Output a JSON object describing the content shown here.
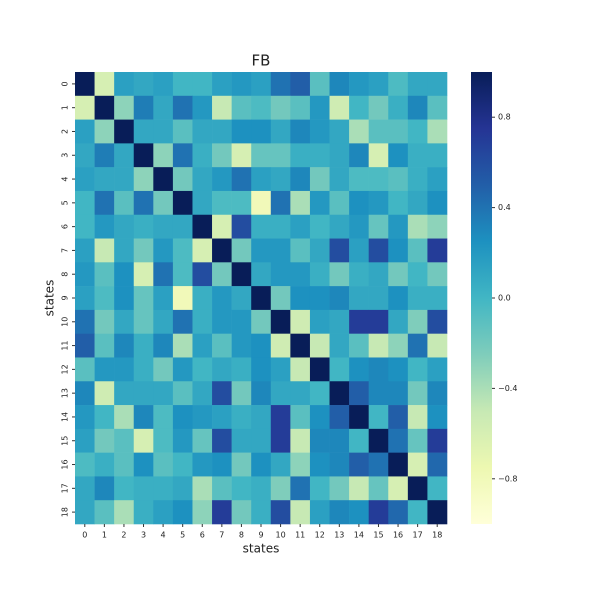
{
  "chart_data": {
    "type": "heatmap",
    "title": "FB",
    "xlabel": "states",
    "ylabel": "states",
    "x": [
      "0",
      "1",
      "2",
      "3",
      "4",
      "5",
      "6",
      "7",
      "8",
      "9",
      "10",
      "11",
      "12",
      "13",
      "14",
      "15",
      "16",
      "17",
      "18"
    ],
    "y": [
      "0",
      "1",
      "2",
      "3",
      "4",
      "5",
      "6",
      "7",
      "8",
      "9",
      "10",
      "11",
      "12",
      "13",
      "14",
      "15",
      "16",
      "17",
      "18"
    ],
    "values": [
      [
        1,
        -0.6,
        0.15,
        0.1,
        0.15,
        0,
        0,
        0.15,
        0.2,
        0.15,
        0.4,
        0.5,
        -0.1,
        0.3,
        0.2,
        0.15,
        -0.05,
        0.1,
        0.1
      ],
      [
        -0.6,
        1,
        -0.3,
        0.35,
        0.1,
        0.4,
        0.2,
        -0.5,
        -0.1,
        -0.05,
        -0.2,
        -0.1,
        0.2,
        -0.55,
        0,
        -0.2,
        0.05,
        0.3,
        -0.1
      ],
      [
        0.15,
        -0.3,
        1,
        0.1,
        0.1,
        -0.1,
        0.1,
        0.1,
        0.25,
        0.25,
        0.1,
        0.3,
        0.2,
        0.1,
        -0.4,
        -0.1,
        -0.1,
        0,
        -0.4
      ],
      [
        0.1,
        0.35,
        0.1,
        1,
        -0.3,
        0.4,
        0.05,
        -0.2,
        -0.6,
        -0.15,
        -0.15,
        0.05,
        0.05,
        0.1,
        0.3,
        -0.6,
        0.25,
        0.05,
        0.05
      ],
      [
        0.15,
        0.1,
        0.1,
        -0.3,
        1,
        -0.2,
        0.1,
        0.2,
        0.4,
        0.15,
        0.1,
        0.3,
        -0.2,
        0.1,
        -0.05,
        -0.05,
        -0.1,
        0.05,
        0.15
      ],
      [
        0,
        0.4,
        -0.1,
        0.4,
        -0.2,
        1,
        0.1,
        -0.05,
        -0.05,
        -0.8,
        0.4,
        -0.4,
        0.2,
        -0.1,
        0.25,
        0.2,
        0,
        0.1,
        0.25
      ],
      [
        0,
        0.2,
        0.1,
        0.05,
        0.1,
        0.1,
        1,
        -0.6,
        0.6,
        0.05,
        0.05,
        0.15,
        0,
        0.1,
        0.2,
        -0.15,
        0.2,
        -0.4,
        -0.3
      ],
      [
        0.15,
        -0.5,
        0.1,
        -0.2,
        0.2,
        -0.05,
        -0.6,
        1,
        -0.2,
        0.2,
        0.2,
        -0.1,
        0.1,
        0.6,
        0.15,
        0.6,
        0.25,
        -0.1,
        0.7
      ],
      [
        0.2,
        -0.1,
        0.25,
        -0.6,
        0.4,
        -0.05,
        0.6,
        -0.2,
        1,
        0.1,
        0.2,
        0.2,
        0.05,
        -0.2,
        0.05,
        0.1,
        -0.2,
        0,
        -0.2
      ],
      [
        0.15,
        -0.05,
        0.25,
        -0.15,
        0.15,
        -0.8,
        0.05,
        0.2,
        0.1,
        1,
        -0.2,
        0.25,
        0.25,
        0.3,
        0.1,
        0.1,
        0.25,
        0.05,
        0.05
      ],
      [
        0.4,
        -0.2,
        0.1,
        -0.15,
        0.1,
        0.4,
        0.05,
        0.2,
        0.2,
        -0.2,
        1,
        -0.55,
        0.15,
        0.1,
        0.7,
        0.7,
        0.1,
        -0.25,
        0.6
      ],
      [
        0.5,
        -0.1,
        0.3,
        0.05,
        0.3,
        -0.4,
        0.15,
        -0.1,
        0.2,
        0.25,
        -0.55,
        1,
        -0.5,
        0.1,
        -0.1,
        -0.5,
        -0.3,
        0.4,
        -0.5
      ],
      [
        -0.1,
        0.2,
        0.2,
        0.05,
        -0.2,
        0.2,
        0,
        0.1,
        0.05,
        0.25,
        0.15,
        -0.5,
        1,
        0,
        0.25,
        0.3,
        0.25,
        0,
        0.15
      ],
      [
        0.3,
        -0.55,
        0.1,
        0.1,
        0.1,
        -0.1,
        0.1,
        0.6,
        -0.2,
        0.3,
        0.1,
        0.1,
        0,
        1,
        0.5,
        0.3,
        0.3,
        -0.2,
        0.3
      ],
      [
        0.2,
        0,
        -0.4,
        0.3,
        -0.05,
        0.25,
        0.2,
        0.15,
        0.05,
        0.1,
        0.7,
        -0.1,
        0.25,
        0.5,
        1,
        0,
        0.5,
        -0.5,
        0.25
      ],
      [
        0.15,
        -0.2,
        -0.1,
        -0.6,
        -0.05,
        0.2,
        -0.15,
        0.6,
        0.1,
        0.1,
        0.7,
        -0.5,
        0.3,
        0.3,
        0,
        1,
        0.4,
        -0.15,
        0.7
      ],
      [
        -0.05,
        0.05,
        -0.1,
        0.25,
        -0.1,
        0,
        0.2,
        0.25,
        -0.2,
        0.25,
        0.1,
        -0.3,
        0.25,
        0.3,
        0.5,
        0.4,
        1,
        -0.6,
        0.45
      ],
      [
        0.1,
        0.3,
        0,
        0.05,
        0.05,
        0.1,
        -0.4,
        -0.1,
        0,
        0.05,
        -0.25,
        0.4,
        0,
        -0.2,
        -0.5,
        -0.15,
        -0.6,
        1,
        0
      ],
      [
        0.1,
        -0.1,
        -0.4,
        0.05,
        0.15,
        0.25,
        -0.3,
        0.7,
        -0.2,
        0.05,
        0.6,
        -0.5,
        0.15,
        0.3,
        0.25,
        0.7,
        0.45,
        0,
        1
      ]
    ],
    "clim": [
      -1,
      1
    ],
    "cticks": [
      {
        "value": -0.8,
        "label": "−0.8"
      },
      {
        "value": -0.4,
        "label": "−0.4"
      },
      {
        "value": 0,
        "label": "0.0"
      },
      0.4,
      0.8
    ],
    "colormap": [
      "#ffffd9",
      "#edf8b1",
      "#c7e9b4",
      "#7fcdbb",
      "#41b6c4",
      "#1d91c0",
      "#225ea8",
      "#253494",
      "#081d58"
    ]
  }
}
